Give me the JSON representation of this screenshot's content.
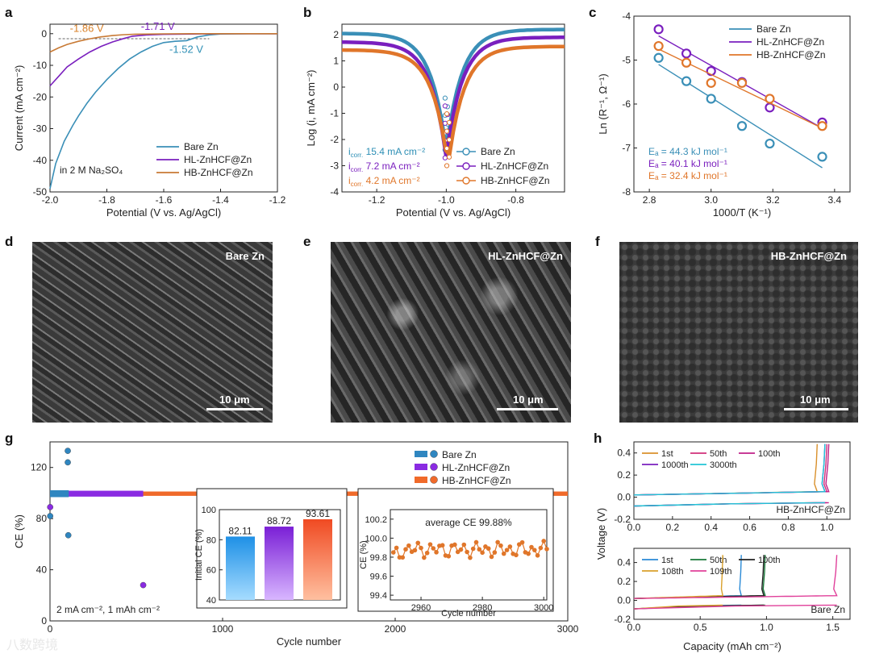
{
  "panels": {
    "a": "a",
    "b": "b",
    "c": "c",
    "d": "d",
    "e": "e",
    "f": "f",
    "g": "g",
    "h": "h"
  },
  "colors": {
    "bare": "#3a8fb7",
    "hl": "#7a1fbe",
    "hb": "#e0762a"
  },
  "chart_data": [
    {
      "id": "a",
      "type": "line",
      "xlabel": "Potential (V vs. Ag/AgCl)",
      "ylabel": "Current (mA cm⁻²)",
      "xlim": [
        -2.0,
        -1.2
      ],
      "ylim": [
        -50,
        3
      ],
      "xticks": [
        -2.0,
        -1.8,
        -1.6,
        -1.4,
        -1.2
      ],
      "xtick_labels": [
        "-2.0",
        "-1.8",
        "-1.6",
        "-1.4",
        "-1.2"
      ],
      "yticks": [
        0,
        -10,
        -20,
        -30,
        -40,
        -50
      ],
      "ytick_labels": [
        "0",
        "-10",
        "-20",
        "-30",
        "-40",
        "-50"
      ],
      "note": "in 2 M Na₂SO₄",
      "annotations": [
        {
          "text": "-1.86 V",
          "x": -1.86,
          "y": 0,
          "color": "#d9822b"
        },
        {
          "text": "-1.71 V",
          "x": -1.71,
          "y": 0,
          "color": "#7a1fbe"
        },
        {
          "text": "-1.52 V",
          "x": -1.52,
          "y": -2.2,
          "color": "#2d8fb5"
        }
      ],
      "series": [
        {
          "name": "Bare Zn",
          "color": "#3a8fb7",
          "x": [
            -2.0,
            -1.98,
            -1.95,
            -1.92,
            -1.9,
            -1.87,
            -1.84,
            -1.8,
            -1.76,
            -1.72,
            -1.68,
            -1.64,
            -1.6,
            -1.56,
            -1.52,
            -1.48,
            -1.44,
            -1.4,
            -1.3,
            -1.2
          ],
          "y": [
            -49,
            -41,
            -34,
            -29,
            -26,
            -22,
            -18.5,
            -14.5,
            -11,
            -8,
            -5.8,
            -4,
            -2.8,
            -2.4,
            -2.2,
            -1,
            -0.4,
            -0.1,
            0,
            0
          ]
        },
        {
          "name": "HL-ZnHCF@Zn",
          "color": "#7a1fbe",
          "x": [
            -2.0,
            -1.97,
            -1.94,
            -1.9,
            -1.86,
            -1.82,
            -1.78,
            -1.74,
            -1.71,
            -1.66,
            -1.6,
            -1.5,
            -1.4,
            -1.3,
            -1.2
          ],
          "y": [
            -16.5,
            -13.5,
            -10.5,
            -8,
            -5.8,
            -4,
            -2.6,
            -1.5,
            -0.8,
            -0.4,
            -0.2,
            -0.1,
            0,
            0,
            0
          ]
        },
        {
          "name": "HB-ZnHCF@Zn",
          "color": "#c87a35",
          "x": [
            -2.0,
            -1.97,
            -1.94,
            -1.9,
            -1.86,
            -1.82,
            -1.78,
            -1.74,
            -1.7,
            -1.6,
            -1.5,
            -1.4,
            -1.3,
            -1.2
          ],
          "y": [
            -5.8,
            -4.5,
            -3.4,
            -2.4,
            -1.6,
            -1.0,
            -0.6,
            -0.3,
            -0.15,
            -0.05,
            0,
            0,
            0,
            0
          ]
        }
      ]
    },
    {
      "id": "b",
      "type": "line",
      "xlabel": "Potential (V vs. Ag/AgCl)",
      "ylabel": "Log (i, mA cm⁻²)",
      "xlim": [
        -1.3,
        -0.66
      ],
      "ylim": [
        -4,
        2.4
      ],
      "xticks": [
        -1.2,
        -1.0,
        -0.8
      ],
      "xtick_labels": [
        "-1.2",
        "-1.0",
        "-0.8"
      ],
      "yticks": [
        2,
        1,
        0,
        -1,
        -2,
        -3,
        -4
      ],
      "ytick_labels": [
        "2",
        "1",
        "0",
        "-1",
        "-2",
        "-3",
        "-4"
      ],
      "icorr": [
        {
          "label": "i",
          "sub": "corr.",
          "value": "15.4 mA cm⁻²",
          "color": "#2d8fb5"
        },
        {
          "label": "i",
          "sub": "corr.",
          "value": "7.2 mA cm⁻²",
          "color": "#7a1fbe"
        },
        {
          "label": "i",
          "sub": "corr.",
          "value": "4.2 mA cm⁻²",
          "color": "#e0762a"
        }
      ],
      "series": [
        {
          "name": "Bare Zn",
          "color": "#3a8fb7",
          "left": 2.05,
          "right": 2.2,
          "ecorr": -1.0,
          "min": -2.4
        },
        {
          "name": "HL-ZnHCF@Zn",
          "color": "#7a1fbe",
          "left": 1.72,
          "right": 1.9,
          "ecorr": -1.0,
          "min": -2.7
        },
        {
          "name": "HB-ZnHCF@Zn",
          "color": "#e0762a",
          "left": 1.42,
          "right": 1.55,
          "ecorr": -0.995,
          "min": -3.0
        }
      ]
    },
    {
      "id": "c",
      "type": "scatter",
      "xlabel": "1000/T (K⁻¹)",
      "ylabel": "Ln (R⁻¹, Ω⁻¹)",
      "xlim": [
        2.75,
        3.45
      ],
      "ylim": [
        -8,
        -4
      ],
      "xticks": [
        2.8,
        3.0,
        3.2,
        3.4
      ],
      "xtick_labels": [
        "2.8",
        "3.0",
        "3.2",
        "3.4"
      ],
      "yticks": [
        -4,
        -5,
        -6,
        -7,
        -8
      ],
      "ytick_labels": [
        "-4",
        "-5",
        "-6",
        "-7",
        "-8"
      ],
      "x": [
        2.83,
        2.92,
        3.0,
        3.1,
        3.19,
        3.36
      ],
      "series": [
        {
          "name": "Bare Zn",
          "color": "#3a8fb7",
          "values": [
            -4.95,
            -5.48,
            -5.88,
            -6.5,
            -6.9,
            -7.2
          ],
          "fit": [
            [
              2.83,
              -5.1
            ],
            [
              3.36,
              -7.45
            ]
          ],
          "ea": "Eₐ = 44.3 kJ mol⁻¹"
        },
        {
          "name": "HL-ZnHCF@Zn",
          "color": "#7a1fbe",
          "values": [
            -4.3,
            -4.85,
            -5.25,
            -5.5,
            -6.08,
            -6.42
          ],
          "fit": [
            [
              2.83,
              -4.45
            ],
            [
              3.36,
              -6.55
            ]
          ],
          "ea": "Eₐ = 40.1 kJ mol⁻¹"
        },
        {
          "name": "HB-ZnHCF@Zn",
          "color": "#e0762a",
          "values": [
            -4.68,
            -5.06,
            -5.52,
            -5.52,
            -5.88,
            -6.5
          ],
          "fit": [
            [
              2.83,
              -4.75
            ],
            [
              3.36,
              -6.55
            ]
          ],
          "ea": "Eₐ = 32.4 kJ mol⁻¹"
        }
      ]
    },
    {
      "id": "g",
      "type": "scatter",
      "xlabel": "Cycle number",
      "ylabel": "CE (%)",
      "xlim": [
        0,
        3000
      ],
      "ylim": [
        0,
        140
      ],
      "xticks": [
        0,
        1000,
        2000,
        3000
      ],
      "xtick_labels": [
        "0",
        "1000",
        "2000",
        "3000"
      ],
      "yticks": [
        0,
        40,
        80,
        120
      ],
      "ytick_labels": [
        "0",
        "40",
        "80",
        "120"
      ],
      "condition": "2 mA cm⁻², 1 mAh cm⁻²",
      "legend": [
        "Bare Zn",
        "HL-ZnHCF@Zn",
        "HB-ZnHCF@Zn"
      ],
      "series": [
        {
          "name": "Bare Zn",
          "color": "#2f86c0",
          "cycles": 109,
          "outliers": [
            [
              1,
              82
            ],
            [
              103,
              133
            ],
            [
              103,
              124
            ],
            [
              106,
              67
            ]
          ]
        },
        {
          "name": "HL-ZnHCF@Zn",
          "color": "#8a2be2",
          "cycles": 540,
          "outliers": [
            [
              1,
              89
            ],
            [
              540,
              28
            ]
          ]
        },
        {
          "name": "HB-ZnHCF@Zn",
          "color": "#f06a2a",
          "cycles": 3000,
          "outliers": []
        }
      ],
      "inset_bar": {
        "type": "bar",
        "ylabel": "Initial CE (%)",
        "ylim": [
          40,
          100
        ],
        "yticks": [
          40,
          60,
          80,
          100
        ],
        "ytick_labels": [
          "40",
          "60",
          "80",
          "100"
        ],
        "values": [
          82.11,
          88.72,
          93.61
        ],
        "value_labels": [
          "82.11",
          "88.72",
          "93.61"
        ],
        "colors": [
          "#2f9fe8",
          "#8a2be2",
          "#f05a2a"
        ]
      },
      "inset_line": {
        "type": "line",
        "xlabel": "Cycle number",
        "ylabel": "CE (%)",
        "xlim": [
          2950,
          3001
        ],
        "ylim": [
          99.35,
          100.3
        ],
        "xticks": [
          2960,
          2980,
          3000
        ],
        "xtick_labels": [
          "2960",
          "2980",
          "3000"
        ],
        "yticks": [
          99.4,
          99.6,
          99.8,
          100.0,
          100.2
        ],
        "ytick_labels": [
          "99.4",
          "99.6",
          "99.8",
          "100.0",
          "100.2"
        ],
        "note": "average CE 99.88%",
        "color": "#e0762a"
      }
    },
    {
      "id": "h",
      "type": "line",
      "xlabel": "Capacity (mAh cm⁻²)",
      "ylabel": "Voltage (V)",
      "subplots": [
        {
          "label": "HB-ZnHCF@Zn",
          "xlim": [
            0,
            1.12
          ],
          "ylim": [
            -0.2,
            0.5
          ],
          "xticks": [
            0,
            0.2,
            0.4,
            0.6,
            0.8,
            1.0
          ],
          "xtick_labels": [
            "0.0",
            "0.2",
            "0.4",
            "0.6",
            "0.8",
            "1.0"
          ],
          "yticks": [
            -0.2,
            0,
            0.2,
            0.4
          ],
          "ytick_labels": [
            "-0.2",
            "0.0",
            "0.2",
            "0.4"
          ],
          "series": [
            {
              "name": "1st",
              "color": "#d9902b",
              "cap": 0.95
            },
            {
              "name": "50th",
              "color": "#d0307a",
              "cap": 1.0
            },
            {
              "name": "100th",
              "color": "#c02088",
              "cap": 1.01
            },
            {
              "name": "1000th",
              "color": "#7a1fbe",
              "cap": 0.99
            },
            {
              "name": "3000th",
              "color": "#22c5d6",
              "cap": 0.99
            }
          ]
        },
        {
          "label": "Bare Zn",
          "xlim": [
            0,
            1.63
          ],
          "ylim": [
            -0.2,
            0.55
          ],
          "xticks": [
            0,
            0.5,
            1.0,
            1.5
          ],
          "xtick_labels": [
            "0.0",
            "0.5",
            "1.0",
            "1.5"
          ],
          "yticks": [
            -0.2,
            0,
            0.2,
            0.4
          ],
          "ytick_labels": [
            "-0.2",
            "0.0",
            "0.2",
            "0.4"
          ],
          "series": [
            {
              "name": "1st",
              "color": "#2a8ad6",
              "cap": 0.81
            },
            {
              "name": "50th",
              "color": "#1a7a3a",
              "cap": 0.99
            },
            {
              "name": "100th",
              "color": "#222222",
              "cap": 0.98
            },
            {
              "name": "108th",
              "color": "#d9a02b",
              "cap": 0.67
            },
            {
              "name": "109th",
              "color": "#e0409a",
              "cap": 1.53
            }
          ]
        }
      ]
    }
  ],
  "sem": [
    {
      "id": "d",
      "label": "Bare Zn",
      "scale": "10 μm"
    },
    {
      "id": "e",
      "label": "HL-ZnHCF@Zn",
      "scale": "10 μm"
    },
    {
      "id": "f",
      "label": "HB-ZnHCF@Zn",
      "scale": "10 μm"
    }
  ],
  "watermark": "八数跨境"
}
